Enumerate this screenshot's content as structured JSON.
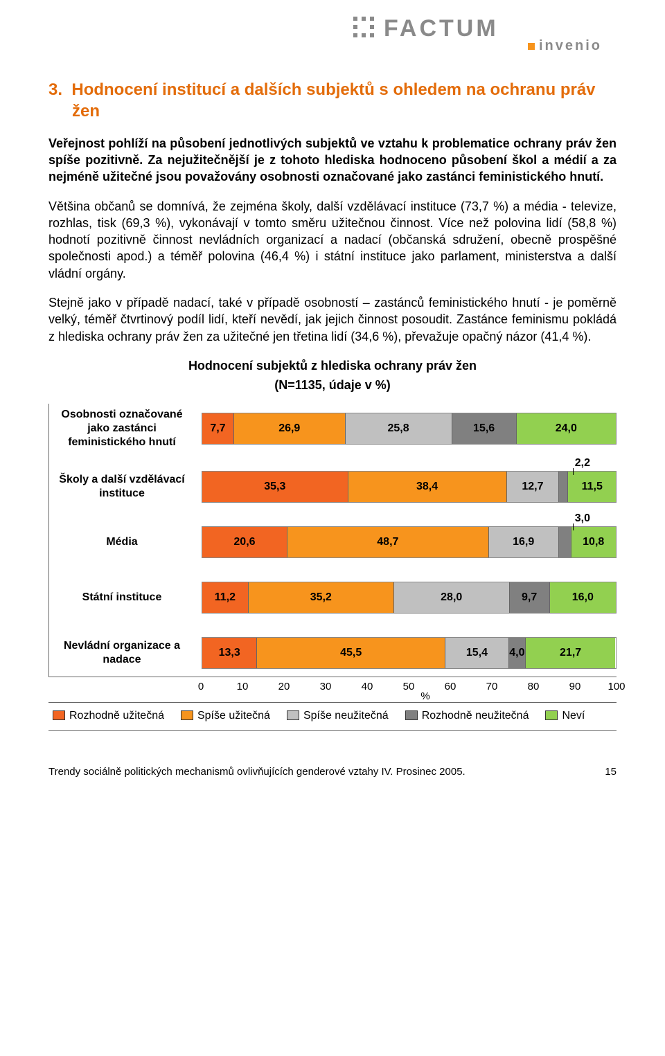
{
  "logo": {
    "brand_main": "FACTUM",
    "brand_sub": "invenio",
    "dot_color": "#F7941D",
    "text_color": "#8A8A8A"
  },
  "section": {
    "number": "3.",
    "title": "Hodnocení institucí a dalších subjektů s ohledem na ochranu práv žen"
  },
  "lead": "Veřejnost pohlíží na působení jednotlivých subjektů ve vztahu k problematice ochrany práv žen spíše pozitivně. Za nejužitečnější je z tohoto hlediska hodnoceno působení škol a médií a za nejméně užitečné jsou považovány osobnosti označované jako zastánci feministického hnutí.",
  "para1": "Většina občanů se domnívá, že zejména školy, další vzdělávací instituce (73,7 %) a média - televize, rozhlas, tisk (69,3 %), vykonávají v tomto směru užitečnou činnost. Více než polovina lidí (58,8 %) hodnotí pozitivně činnost nevládních organizací a nadací (občanská sdružení, obecně prospěšné společnosti apod.) a téměř polovina (46,4 %) i státní instituce jako parlament, ministerstva a další vládní orgány.",
  "para2": "Stejně jako v případě nadací, také v případě osobností – zastánců feministického hnutí - je poměrně velký, téměř čtvrtinový podíl lidí, kteří nevědí, jak jejich činnost posoudit. Zastánce feminismu pokládá z hlediska ochrany práv žen za užitečné jen třetina lidí (34,6 %),  převažuje opačný názor (41,4 %).",
  "chart": {
    "title": "Hodnocení subjektů z hlediska ochrany práv žen",
    "subtitle": "(N=1135, údaje v %)",
    "x_axis": {
      "min": 0,
      "max": 100,
      "step": 10,
      "label": "%"
    },
    "colors": {
      "rozhodne_uzitecna": "#F26522",
      "spise_uzitecna": "#F7941D",
      "spise_neuzitecna": "#C0C0C0",
      "rozhodne_neuzitecna": "#808080",
      "nevi": "#92D050"
    },
    "legend": [
      {
        "key": "rozhodne_uzitecna",
        "label": "Rozhodně užitečná"
      },
      {
        "key": "spise_uzitecna",
        "label": "Spíše užitečná"
      },
      {
        "key": "spise_neuzitecna",
        "label": "Spíše neužitečná"
      },
      {
        "key": "rozhodne_neuzitecna",
        "label": "Rozhodně neužitečná"
      },
      {
        "key": "nevi",
        "label": "Neví"
      }
    ],
    "rows": [
      {
        "label": "Osobnosti označované jako zastánci feministického hnutí",
        "values": [
          {
            "v": 7.7,
            "t": "7,7"
          },
          {
            "v": 26.9,
            "t": "26,9"
          },
          {
            "v": 25.8,
            "t": "25,8"
          },
          {
            "v": 15.6,
            "t": "15,6"
          },
          {
            "v": 24.0,
            "t": "24,0"
          }
        ],
        "callout": null
      },
      {
        "label": "Školy a další vzdělávací instituce",
        "values": [
          {
            "v": 35.3,
            "t": "35,3"
          },
          {
            "v": 38.4,
            "t": "38,4"
          },
          {
            "v": 12.7,
            "t": "12,7"
          },
          {
            "v": 2.2,
            "t": ""
          },
          {
            "v": 11.5,
            "t": "11,5"
          }
        ],
        "callout": "2,2"
      },
      {
        "label": "Média",
        "values": [
          {
            "v": 20.6,
            "t": "20,6"
          },
          {
            "v": 48.7,
            "t": "48,7"
          },
          {
            "v": 16.9,
            "t": "16,9"
          },
          {
            "v": 3.0,
            "t": ""
          },
          {
            "v": 10.8,
            "t": "10,8"
          }
        ],
        "callout": "3,0"
      },
      {
        "label": "Státní instituce",
        "values": [
          {
            "v": 11.2,
            "t": "11,2"
          },
          {
            "v": 35.2,
            "t": "35,2"
          },
          {
            "v": 28.0,
            "t": "28,0"
          },
          {
            "v": 9.7,
            "t": "9,7"
          },
          {
            "v": 16.0,
            "t": "16,0"
          }
        ],
        "callout": null
      },
      {
        "label": "Nevládní organizace a nadace",
        "values": [
          {
            "v": 13.3,
            "t": "13,3"
          },
          {
            "v": 45.5,
            "t": "45,5"
          },
          {
            "v": 15.4,
            "t": "15,4"
          },
          {
            "v": 4.0,
            "t": "4,0"
          },
          {
            "v": 21.7,
            "t": "21,7"
          }
        ],
        "callout": null
      }
    ]
  },
  "footer": {
    "text": "Trendy sociálně politických mechanismů ovlivňujících genderové vztahy IV. Prosinec 2005.",
    "page": "15"
  }
}
